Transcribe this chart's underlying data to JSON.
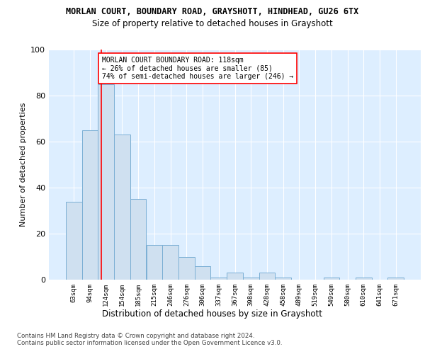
{
  "title1": "MORLAN COURT, BOUNDARY ROAD, GRAYSHOTT, HINDHEAD, GU26 6TX",
  "title2": "Size of property relative to detached houses in Grayshott",
  "xlabel": "Distribution of detached houses by size in Grayshott",
  "ylabel": "Number of detached properties",
  "categories": [
    "63sqm",
    "94sqm",
    "124sqm",
    "154sqm",
    "185sqm",
    "215sqm",
    "246sqm",
    "276sqm",
    "306sqm",
    "337sqm",
    "367sqm",
    "398sqm",
    "428sqm",
    "458sqm",
    "489sqm",
    "519sqm",
    "549sqm",
    "580sqm",
    "610sqm",
    "641sqm",
    "671sqm"
  ],
  "values": [
    34,
    65,
    85,
    63,
    35,
    15,
    15,
    10,
    6,
    1,
    3,
    1,
    3,
    1,
    0,
    0,
    1,
    0,
    1,
    0,
    1
  ],
  "bar_color": "#cfe0f0",
  "bar_edge_color": "#7bafd4",
  "red_line_x": 1.7,
  "annotation_text": "MORLAN COURT BOUNDARY ROAD: 118sqm\n← 26% of detached houses are smaller (85)\n74% of semi-detached houses are larger (246) →",
  "ylim": [
    0,
    100
  ],
  "yticks": [
    0,
    20,
    40,
    60,
    80,
    100
  ],
  "background_color": "#ddeeff",
  "footer": "Contains HM Land Registry data © Crown copyright and database right 2024.\nContains public sector information licensed under the Open Government Licence v3.0.",
  "title1_fontsize": 8.5,
  "title2_fontsize": 8.5,
  "xlabel_fontsize": 8.5,
  "ylabel_fontsize": 8
}
